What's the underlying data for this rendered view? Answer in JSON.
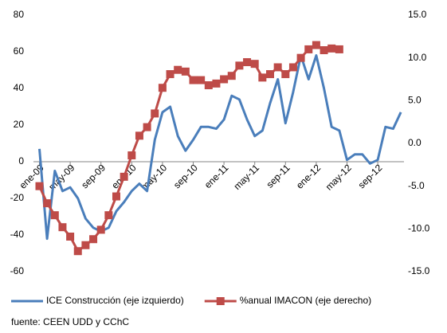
{
  "chart_data": {
    "type": "line",
    "categories": [
      "ene-09",
      null,
      null,
      null,
      "may-09",
      null,
      null,
      null,
      "sep-09",
      null,
      null,
      null,
      "ene-10",
      null,
      null,
      null,
      "may-10",
      null,
      null,
      null,
      "sep-10",
      null,
      null,
      null,
      "ene-11",
      null,
      null,
      null,
      "may-11",
      null,
      null,
      null,
      "sep-11",
      null,
      null,
      null,
      "ene-12",
      null,
      null,
      null,
      "may-12",
      null,
      null,
      null,
      "sep-12",
      null,
      null,
      null
    ],
    "series": [
      {
        "name": "ICE Construcción (eje izquierdo)",
        "color": "#4a7ebb",
        "axis": "y",
        "values": [
          7,
          -42,
          -5,
          -16,
          -14,
          -20,
          -31,
          -36,
          -38,
          -36,
          -27,
          -22,
          -16,
          -12,
          -16,
          12,
          27,
          30,
          14,
          6,
          12,
          19,
          19,
          18,
          23,
          36,
          34,
          23,
          14,
          17,
          32,
          45,
          21,
          38,
          58,
          45,
          58,
          40,
          19,
          17,
          1,
          4,
          4,
          -1,
          1,
          19,
          18,
          27
        ]
      },
      {
        "name": "%anual IMACON (eje derecho)",
        "color": "#be4b48",
        "axis": "y2",
        "values": [
          -5.0,
          -7.0,
          -8.4,
          -9.8,
          -10.9,
          -12.6,
          -11.9,
          -11.2,
          -10.1,
          -8.4,
          -6.2,
          -3.9,
          -1.4,
          0.9,
          1.9,
          3.5,
          6.5,
          8.1,
          8.6,
          8.4,
          7.4,
          7.4,
          6.8,
          7.0,
          7.5,
          7.9,
          9.1,
          9.5,
          9.3,
          7.7,
          8.1,
          8.9,
          8.1,
          8.9,
          10.0,
          11.0,
          11.5,
          10.9,
          11.1,
          11.0,
          null,
          null,
          null,
          null,
          null,
          null,
          null,
          null
        ]
      }
    ],
    "ylim": [
      -60,
      80
    ],
    "yticks": [
      -60,
      -40,
      -20,
      0,
      20,
      40,
      60,
      80
    ],
    "y2lim": [
      -15,
      15
    ],
    "y2ticks": [
      {
        "value": -15,
        "label": "-15.0"
      },
      {
        "value": -10,
        "label": "-10.0"
      },
      {
        "value": -5,
        "label": "-5.0"
      },
      {
        "value": 0,
        "label": "0.0"
      },
      {
        "value": 5,
        "label": "5.0"
      },
      {
        "value": 10,
        "label": "10.0"
      },
      {
        "value": 15,
        "label": "15.0"
      }
    ],
    "legend": "bottom",
    "source": "fuente: CEEN UDD y CChC"
  }
}
